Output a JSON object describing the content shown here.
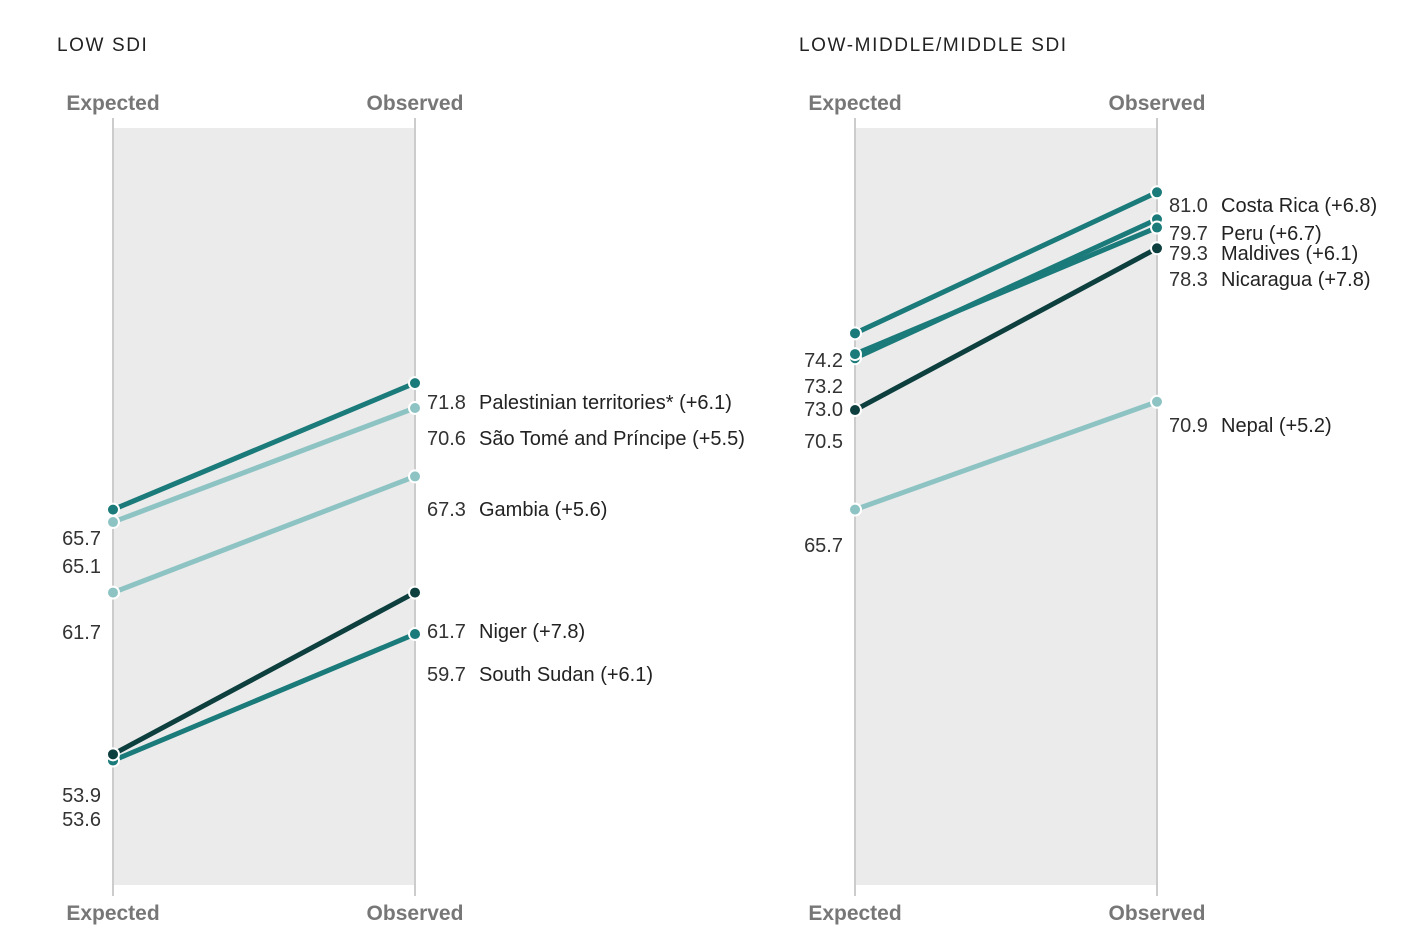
{
  "chart_data": [
    {
      "type": "line",
      "subtype": "slope",
      "title": "LOW SDI",
      "x": [
        "Expected",
        "Observed"
      ],
      "x_top_labels": [
        "Expected",
        "Observed"
      ],
      "x_bottom_labels": [
        "Expected",
        "Observed"
      ],
      "ylim": [
        47.6,
        84.1
      ],
      "grid": false,
      "series": [
        {
          "name": "Palestinian territories* (+6.1)",
          "values": [
            65.7,
            71.8
          ],
          "labels": [
            "65.7",
            "71.8"
          ],
          "color": "#1b7a7a"
        },
        {
          "name": "São Tomé and Príncipe (+5.5)",
          "values": [
            65.1,
            70.6
          ],
          "labels": [
            "65.1",
            "70.6"
          ],
          "color": "#8ec3c3"
        },
        {
          "name": "Gambia (+5.6)",
          "values": [
            61.7,
            67.3
          ],
          "labels": [
            "61.7",
            "67.3"
          ],
          "color": "#8ec3c3"
        },
        {
          "name": "Niger (+7.8)",
          "values": [
            53.9,
            61.7
          ],
          "labels": [
            "53.9",
            "61.7"
          ],
          "color": "#0e3f3f"
        },
        {
          "name": "South Sudan (+6.1)",
          "values": [
            53.6,
            59.7
          ],
          "labels": [
            "53.6",
            "59.7"
          ],
          "color": "#1b7a7a"
        }
      ]
    },
    {
      "type": "line",
      "subtype": "slope",
      "title": "LOW-MIDDLE/MIDDLE SDI",
      "x": [
        "Expected",
        "Observed"
      ],
      "x_top_labels": [
        "Expected",
        "Observed"
      ],
      "x_bottom_labels": [
        "Expected",
        "Observed"
      ],
      "ylim": [
        47.6,
        84.1
      ],
      "grid": false,
      "series": [
        {
          "name": "Costa Rica (+6.8)",
          "values": [
            74.2,
            81.0
          ],
          "labels": [
            "74.2",
            "81.0"
          ],
          "color": "#1b7a7a"
        },
        {
          "name": "Peru (+6.7)",
          "values": [
            73.0,
            79.7
          ],
          "labels": [
            "73.0",
            "79.7"
          ],
          "color": "#1b7a7a"
        },
        {
          "name": "Maldives (+6.1)",
          "values": [
            73.2,
            79.3
          ],
          "labels": [
            "73.2",
            "79.3"
          ],
          "color": "#1b7a7a"
        },
        {
          "name": "Nicaragua (+7.8)",
          "values": [
            70.5,
            78.3
          ],
          "labels": [
            "70.5",
            "78.3"
          ],
          "color": "#0e3f3f"
        },
        {
          "name": "Nepal (+5.2)",
          "values": [
            65.7,
            70.9
          ],
          "labels": [
            "65.7",
            "70.9"
          ],
          "color": "#8ec3c3"
        }
      ]
    }
  ]
}
